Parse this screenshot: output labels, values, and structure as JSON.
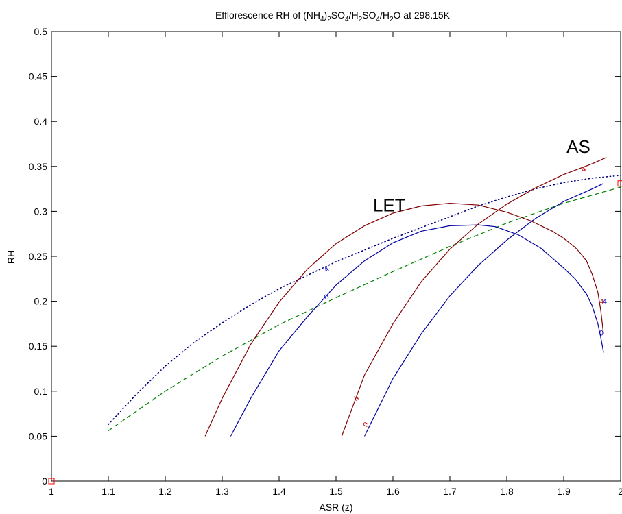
{
  "chart_data": {
    "type": "line",
    "title": {
      "parts": [
        "Efflorescence RH of (NH",
        "4",
        ")",
        "2",
        "SO",
        "4",
        "/H",
        "2",
        "SO",
        "4",
        "/H",
        "2",
        "O at 298.15K"
      ],
      "subs": [
        false,
        true,
        false,
        true,
        false,
        true,
        false,
        true,
        false,
        true,
        false,
        true,
        false
      ]
    },
    "xlabel": "ASR (z)",
    "ylabel": "RH",
    "xlim": [
      1,
      2
    ],
    "ylim": [
      0,
      0.5
    ],
    "x_ticks": [
      1,
      1.1,
      1.2,
      1.3,
      1.4,
      1.5,
      1.6,
      1.7,
      1.8,
      1.9,
      2
    ],
    "x_tick_labels": [
      "1",
      "1.1",
      "1.2",
      "1.3",
      "1.4",
      "1.5",
      "1.6",
      "1.7",
      "1.8",
      "1.9",
      "2"
    ],
    "y_ticks": [
      0,
      0.05,
      0.1,
      0.15,
      0.2,
      0.25,
      0.3,
      0.35,
      0.4,
      0.45,
      0.5
    ],
    "y_tick_labels": [
      "0",
      "0.05",
      "0.1",
      "0.15",
      "0.2",
      "0.25",
      "0.3",
      "0.35",
      "0.4",
      "0.45",
      "0.5"
    ],
    "grid": false,
    "annotations": [
      {
        "text": "LET",
        "x": 1.565,
        "y": 0.3
      },
      {
        "text": "AS",
        "x": 1.905,
        "y": 0.365
      }
    ],
    "series": [
      {
        "color": "#000080",
        "style": "dotted",
        "x": [
          1.1,
          1.15,
          1.2,
          1.25,
          1.3,
          1.35,
          1.4,
          1.45,
          1.5,
          1.55,
          1.6,
          1.65,
          1.7,
          1.75,
          1.8,
          1.85,
          1.9,
          1.95,
          2.0
        ],
        "y": [
          0.063,
          0.097,
          0.128,
          0.154,
          0.176,
          0.196,
          0.214,
          0.229,
          0.244,
          0.257,
          0.27,
          0.282,
          0.294,
          0.306,
          0.316,
          0.325,
          0.332,
          0.337,
          0.34
        ]
      },
      {
        "color": "#008000",
        "style": "dashed",
        "x": [
          1.1,
          1.2,
          1.3,
          1.4,
          1.5,
          1.6,
          1.7,
          1.8,
          1.9,
          2.0
        ],
        "y": [
          0.056,
          0.1,
          0.139,
          0.174,
          0.204,
          0.233,
          0.261,
          0.287,
          0.309,
          0.327
        ]
      },
      {
        "color": "#800000",
        "style": "solid",
        "label": "4",
        "label_pos": [
          1.485,
          0.236
        ],
        "label_angle": -40,
        "x": [
          1.27,
          1.3,
          1.35,
          1.4,
          1.45,
          1.5,
          1.55,
          1.6,
          1.65,
          1.7,
          1.75,
          1.8,
          1.84,
          1.88,
          1.9,
          1.92,
          1.93,
          1.94,
          1.95,
          1.96,
          1.965,
          1.97
        ],
        "y": [
          0.05,
          0.092,
          0.152,
          0.199,
          0.236,
          0.264,
          0.284,
          0.298,
          0.306,
          0.309,
          0.307,
          0.299,
          0.29,
          0.278,
          0.27,
          0.26,
          0.253,
          0.245,
          0.23,
          0.21,
          0.19,
          0.163
        ]
      },
      {
        "color": "#0000a0",
        "style": "solid",
        "label": "0",
        "label_pos": [
          1.485,
          0.205
        ],
        "label_angle": -35,
        "x": [
          1.315,
          1.35,
          1.4,
          1.45,
          1.5,
          1.55,
          1.6,
          1.65,
          1.7,
          1.75,
          1.78,
          1.82,
          1.86,
          1.9,
          1.92,
          1.94,
          1.95,
          1.96,
          1.965,
          1.97
        ],
        "y": [
          0.05,
          0.092,
          0.145,
          0.183,
          0.218,
          0.245,
          0.265,
          0.278,
          0.284,
          0.285,
          0.283,
          0.274,
          0.259,
          0.237,
          0.225,
          0.208,
          0.195,
          0.175,
          0.16,
          0.143
        ]
      },
      {
        "color": "#800000",
        "style": "solid",
        "label": "4",
        "label_pos": [
          1.935,
          0.347
        ],
        "label_angle": -20,
        "x": [
          1.51,
          1.55,
          1.6,
          1.65,
          1.7,
          1.75,
          1.8,
          1.85,
          1.9,
          1.95,
          1.975
        ],
        "y": [
          0.05,
          0.118,
          0.175,
          0.222,
          0.258,
          0.286,
          0.308,
          0.326,
          0.341,
          0.353,
          0.36
        ]
      },
      {
        "color": "#0000a0",
        "style": "solid",
        "label": "0",
        "label_pos": [
          1.54,
          0.063
        ],
        "label_angle": -60,
        "x": [
          1.55,
          1.6,
          1.65,
          1.7,
          1.75,
          1.8,
          1.85,
          1.9,
          1.95,
          1.97
        ],
        "y": [
          0.05,
          0.114,
          0.164,
          0.206,
          0.24,
          0.268,
          0.292,
          0.311,
          0.325,
          0.331
        ]
      }
    ],
    "extra_contour_labels": [
      {
        "text": "4",
        "color": "#0000cc",
        "x": 1.483,
        "y": 0.236,
        "angle": -40
      },
      {
        "text": "0",
        "color": "#0000cc",
        "x": 1.483,
        "y": 0.205,
        "angle": -35
      },
      {
        "text": "4",
        "color": "#cc0000",
        "x": 1.967,
        "y": 0.2,
        "angle": 0
      },
      {
        "text": "4",
        "color": "#0000cc",
        "x": 1.972,
        "y": 0.2,
        "angle": 0
      },
      {
        "text": "0",
        "color": "#0000cc",
        "x": 1.966,
        "y": 0.165,
        "angle": 0
      },
      {
        "text": "4",
        "color": "#cc0000",
        "x": 1.935,
        "y": 0.347,
        "angle": -20
      },
      {
        "text": "4",
        "color": "#cc0000",
        "x": 1.535,
        "y": 0.092,
        "angle": -60
      },
      {
        "text": "0",
        "color": "#cc0000",
        "x": 1.552,
        "y": 0.063,
        "angle": -60
      }
    ],
    "markers": [
      {
        "shape": "square",
        "color": "#ff0000",
        "x": 1.0,
        "y": 0.0
      },
      {
        "shape": "square",
        "color": "#ff0000",
        "x": 2.0,
        "y": 0.331
      }
    ]
  }
}
